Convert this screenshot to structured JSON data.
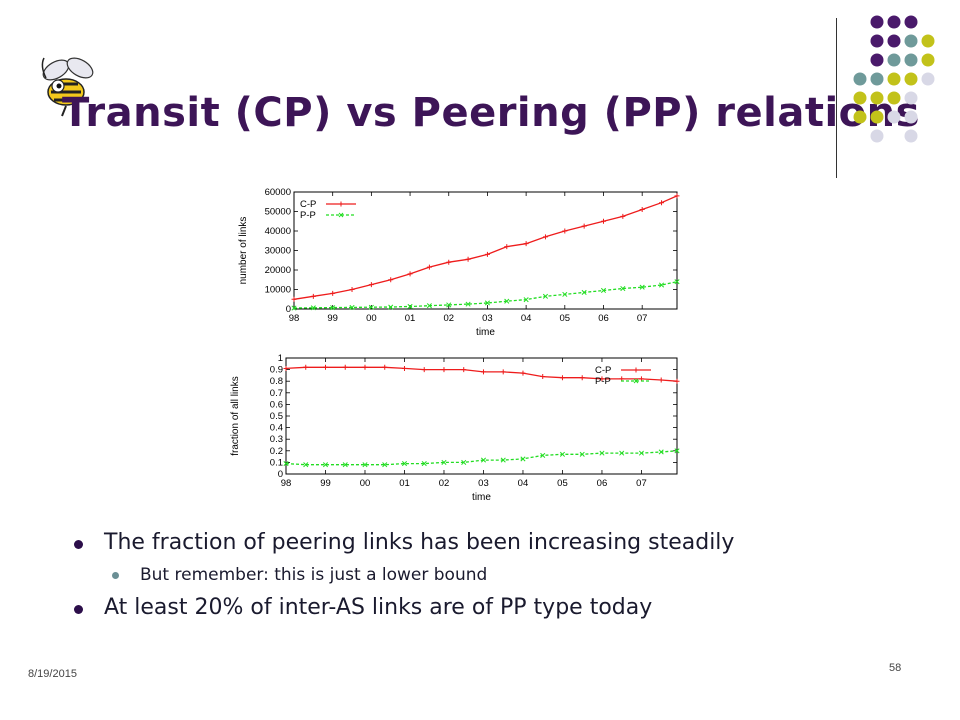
{
  "slide": {
    "title": "Transit (CP) vs Peering (PP) relations",
    "bullets": [
      "The fraction of peering links has been increasing steadily",
      "But remember: this is just a lower bound",
      "At least 20% of inter-AS links are of PP type today"
    ],
    "footer_date": "8/19/2015",
    "page_number": "58"
  },
  "decor": {
    "logo_icon": "yellow-jacket-bee-icon",
    "dot_grid_colors": [
      "#4a1a6b",
      "#6f9a9a",
      "#c2c21a",
      "#d8d8e6"
    ]
  },
  "chart_data": [
    {
      "type": "line",
      "title": "",
      "xlabel": "time",
      "ylabel": "number of links",
      "x_ticks": [
        "98",
        "99",
        "00",
        "01",
        "02",
        "03",
        "04",
        "05",
        "06",
        "07"
      ],
      "y_ticks": [
        "0",
        "10000",
        "20000",
        "30000",
        "40000",
        "50000",
        "60000"
      ],
      "ylim": [
        0,
        60000
      ],
      "xlim": [
        1998,
        2007.9
      ],
      "legend_position": "top-left",
      "series": [
        {
          "name": "C-P",
          "color": "#ee1c1c",
          "x": [
            1998.0,
            1998.5,
            1999.0,
            1999.5,
            2000.0,
            2000.5,
            2001.0,
            2001.5,
            2002.0,
            2002.5,
            2003.0,
            2003.5,
            2004.0,
            2004.5,
            2005.0,
            2005.5,
            2006.0,
            2006.5,
            2007.0,
            2007.5,
            2007.9
          ],
          "y": [
            5000,
            6500,
            8000,
            10000,
            12500,
            15000,
            18000,
            21500,
            24000,
            25500,
            28000,
            32000,
            33500,
            37000,
            40000,
            42500,
            45000,
            47500,
            51000,
            54500,
            58000
          ]
        },
        {
          "name": "P-P",
          "color": "#22dd22",
          "x": [
            1998.0,
            1998.5,
            1999.0,
            1999.5,
            2000.0,
            2000.5,
            2001.0,
            2001.5,
            2002.0,
            2002.5,
            2003.0,
            2003.5,
            2004.0,
            2004.5,
            2005.0,
            2005.5,
            2006.0,
            2006.5,
            2007.0,
            2007.5,
            2007.9
          ],
          "y": [
            500,
            600,
            700,
            800,
            900,
            1000,
            1300,
            1700,
            2100,
            2500,
            3100,
            4000,
            4800,
            6500,
            7500,
            8500,
            9500,
            10500,
            11200,
            12300,
            14000
          ]
        }
      ]
    },
    {
      "type": "line",
      "title": "",
      "xlabel": "time",
      "ylabel": "fraction of all links",
      "x_ticks": [
        "98",
        "99",
        "00",
        "01",
        "02",
        "03",
        "04",
        "05",
        "06",
        "07"
      ],
      "y_ticks": [
        "0",
        "0.1",
        "0.2",
        "0.3",
        "0.4",
        "0.5",
        "0.6",
        "0.7",
        "0.8",
        "0.9",
        "1"
      ],
      "ylim": [
        0,
        1
      ],
      "xlim": [
        1998,
        2007.9
      ],
      "legend_position": "top-right",
      "series": [
        {
          "name": "C-P",
          "color": "#ee1c1c",
          "x": [
            1998.0,
            1998.5,
            1999.0,
            1999.5,
            2000.0,
            2000.5,
            2001.0,
            2001.5,
            2002.0,
            2002.5,
            2003.0,
            2003.5,
            2004.0,
            2004.5,
            2005.0,
            2005.5,
            2006.0,
            2006.5,
            2007.0,
            2007.5,
            2007.9
          ],
          "y": [
            0.91,
            0.92,
            0.92,
            0.92,
            0.92,
            0.92,
            0.91,
            0.9,
            0.9,
            0.9,
            0.88,
            0.88,
            0.87,
            0.84,
            0.83,
            0.83,
            0.82,
            0.82,
            0.82,
            0.81,
            0.8
          ]
        },
        {
          "name": "P-P",
          "color": "#22dd22",
          "x": [
            1998.0,
            1998.5,
            1999.0,
            1999.5,
            2000.0,
            2000.5,
            2001.0,
            2001.5,
            2002.0,
            2002.5,
            2003.0,
            2003.5,
            2004.0,
            2004.5,
            2005.0,
            2005.5,
            2006.0,
            2006.5,
            2007.0,
            2007.5,
            2007.9
          ],
          "y": [
            0.09,
            0.08,
            0.08,
            0.08,
            0.08,
            0.08,
            0.09,
            0.09,
            0.1,
            0.1,
            0.12,
            0.12,
            0.13,
            0.16,
            0.17,
            0.17,
            0.18,
            0.18,
            0.18,
            0.19,
            0.2
          ]
        }
      ]
    }
  ]
}
